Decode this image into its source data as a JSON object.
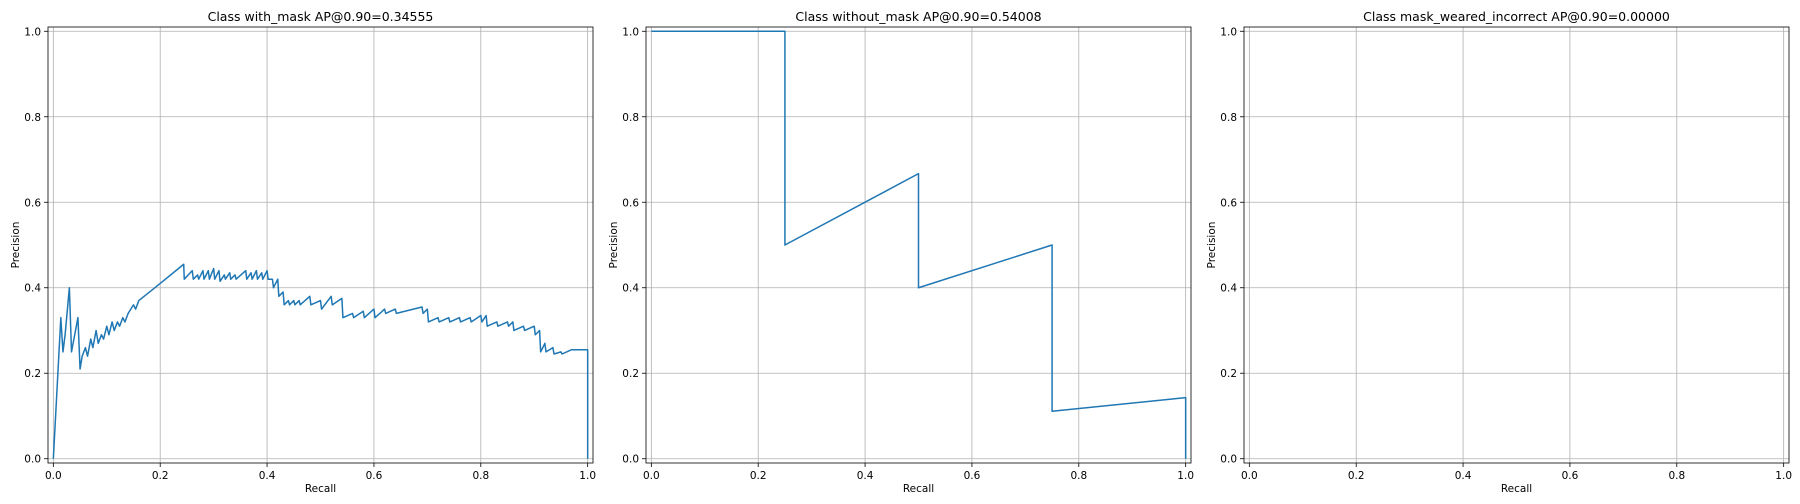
{
  "colors": {
    "series": "#1f77b4",
    "grid": "#b0b0b0",
    "axes": "#000000"
  },
  "chart_data": [
    {
      "type": "line",
      "title": "Class with_mask AP@0.90=0.34555",
      "xlabel": "Recall",
      "ylabel": "Precision",
      "xlim": [
        -0.01,
        1.01
      ],
      "ylim": [
        -0.01,
        1.01
      ],
      "grid": true,
      "xticks": [
        "0.0",
        "0.2",
        "0.4",
        "0.6",
        "0.8",
        "1.0"
      ],
      "yticks": [
        "0.0",
        "0.2",
        "0.4",
        "0.6",
        "0.8",
        "1.0"
      ],
      "series": [
        {
          "x": [
            0.0,
            0.014,
            0.018,
            0.022,
            0.03,
            0.034,
            0.046,
            0.05,
            0.054,
            0.06,
            0.064,
            0.07,
            0.074,
            0.08,
            0.084,
            0.09,
            0.094,
            0.1,
            0.104,
            0.11,
            0.114,
            0.12,
            0.124,
            0.13,
            0.134,
            0.14,
            0.15,
            0.154,
            0.16,
            0.2,
            0.244,
            0.245,
            0.26,
            0.262,
            0.27,
            0.272,
            0.28,
            0.282,
            0.29,
            0.292,
            0.3,
            0.302,
            0.31,
            0.312,
            0.32,
            0.322,
            0.33,
            0.332,
            0.34,
            0.342,
            0.36,
            0.362,
            0.37,
            0.372,
            0.38,
            0.382,
            0.39,
            0.392,
            0.4,
            0.402,
            0.41,
            0.412,
            0.42,
            0.422,
            0.43,
            0.432,
            0.44,
            0.442,
            0.45,
            0.452,
            0.46,
            0.462,
            0.48,
            0.482,
            0.5,
            0.502,
            0.52,
            0.522,
            0.54,
            0.542,
            0.56,
            0.562,
            0.58,
            0.582,
            0.6,
            0.602,
            0.62,
            0.622,
            0.64,
            0.642,
            0.69,
            0.692,
            0.7,
            0.702,
            0.72,
            0.722,
            0.74,
            0.742,
            0.76,
            0.762,
            0.78,
            0.782,
            0.8,
            0.802,
            0.81,
            0.812,
            0.83,
            0.832,
            0.85,
            0.852,
            0.86,
            0.862,
            0.88,
            0.882,
            0.9,
            0.902,
            0.91,
            0.912,
            0.92,
            0.922,
            0.935,
            0.937,
            0.95,
            0.952,
            0.97,
            1.0,
            1.0
          ],
          "y": [
            0.0,
            0.33,
            0.25,
            0.29,
            0.4,
            0.25,
            0.33,
            0.21,
            0.24,
            0.26,
            0.24,
            0.28,
            0.26,
            0.3,
            0.27,
            0.29,
            0.28,
            0.31,
            0.29,
            0.32,
            0.3,
            0.32,
            0.31,
            0.33,
            0.32,
            0.34,
            0.36,
            0.35,
            0.37,
            0.41,
            0.455,
            0.42,
            0.44,
            0.42,
            0.43,
            0.42,
            0.44,
            0.42,
            0.44,
            0.42,
            0.445,
            0.42,
            0.44,
            0.415,
            0.43,
            0.42,
            0.435,
            0.42,
            0.43,
            0.42,
            0.44,
            0.42,
            0.435,
            0.42,
            0.44,
            0.42,
            0.435,
            0.42,
            0.44,
            0.42,
            0.42,
            0.4,
            0.42,
            0.38,
            0.39,
            0.36,
            0.37,
            0.36,
            0.37,
            0.36,
            0.37,
            0.36,
            0.38,
            0.36,
            0.37,
            0.35,
            0.38,
            0.36,
            0.375,
            0.33,
            0.34,
            0.33,
            0.345,
            0.33,
            0.35,
            0.33,
            0.35,
            0.34,
            0.35,
            0.34,
            0.355,
            0.34,
            0.35,
            0.32,
            0.33,
            0.32,
            0.33,
            0.32,
            0.33,
            0.32,
            0.33,
            0.32,
            0.335,
            0.32,
            0.335,
            0.31,
            0.32,
            0.31,
            0.32,
            0.31,
            0.32,
            0.3,
            0.31,
            0.3,
            0.31,
            0.29,
            0.3,
            0.25,
            0.27,
            0.25,
            0.26,
            0.245,
            0.25,
            0.245,
            0.255,
            0.255,
            0.0
          ]
        }
      ]
    },
    {
      "type": "line",
      "title": "Class without_mask AP@0.90=0.54008",
      "xlabel": "Recall",
      "ylabel": "Precision",
      "xlim": [
        -0.01,
        1.01
      ],
      "ylim": [
        -0.01,
        1.01
      ],
      "grid": true,
      "xticks": [
        "0.0",
        "0.2",
        "0.4",
        "0.6",
        "0.8",
        "1.0"
      ],
      "yticks": [
        "0.0",
        "0.2",
        "0.4",
        "0.6",
        "0.8",
        "1.0"
      ],
      "series": [
        {
          "x": [
            0.0,
            0.25,
            0.25,
            0.5,
            0.5,
            0.75,
            0.75,
            1.0,
            1.0
          ],
          "y": [
            1.0,
            1.0,
            0.5,
            0.667,
            0.4,
            0.5,
            0.111,
            0.143,
            0.0
          ]
        }
      ]
    },
    {
      "type": "line",
      "title": "Class mask_weared_incorrect AP@0.90=0.00000",
      "xlabel": "Recall",
      "ylabel": "Precision",
      "xlim": [
        -0.01,
        1.01
      ],
      "ylim": [
        -0.01,
        1.01
      ],
      "grid": true,
      "xticks": [
        "0.0",
        "0.2",
        "0.4",
        "0.6",
        "0.8",
        "1.0"
      ],
      "yticks": [
        "0.0",
        "0.2",
        "0.4",
        "0.6",
        "0.8",
        "1.0"
      ],
      "series": [
        {
          "x": [],
          "y": []
        }
      ]
    }
  ]
}
